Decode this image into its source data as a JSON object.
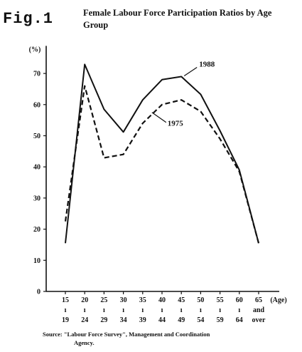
{
  "figure": {
    "label": "Fig.1",
    "title": "Female Labour Force Participation Ratios by Age Group",
    "source_line1": "Source: \"Labour Force Survey\", Management and Coordination",
    "source_line2": "Agency."
  },
  "chart_data": {
    "type": "line",
    "title": "Female Labour Force Participation Ratios by Age Group",
    "ylabel": "(%)",
    "xlabel": "(Age)",
    "ylim": [
      0,
      80
    ],
    "yticks": [
      0,
      10,
      20,
      30,
      40,
      50,
      60,
      70
    ],
    "categories": [
      [
        "15",
        "ı",
        "19"
      ],
      [
        "20",
        "ı",
        "24"
      ],
      [
        "25",
        "ı",
        "29"
      ],
      [
        "30",
        "ı",
        "34"
      ],
      [
        "35",
        "ı",
        "39"
      ],
      [
        "40",
        "ı",
        "44"
      ],
      [
        "45",
        "ı",
        "49"
      ],
      [
        "50",
        "ı",
        "54"
      ],
      [
        "55",
        "ı",
        "59"
      ],
      [
        "60",
        "ı",
        "64"
      ],
      [
        "65",
        "and",
        "over"
      ]
    ],
    "series": [
      {
        "name": "1988",
        "style": "solid",
        "values": [
          15.5,
          72.9,
          58.5,
          51.2,
          61.5,
          68.0,
          69.0,
          63.3,
          51.6,
          39.0,
          15.5
        ]
      },
      {
        "name": "1975",
        "style": "dashed",
        "values": [
          22.5,
          66.0,
          42.9,
          44.0,
          54.0,
          60.0,
          61.5,
          57.8,
          49.0,
          38.5,
          15.5
        ]
      }
    ],
    "grid": false,
    "legend": "inline labels"
  }
}
